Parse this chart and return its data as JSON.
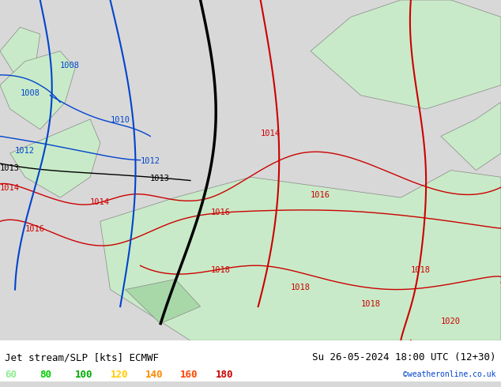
{
  "title_left": "Jet stream/SLP [kts] ECMWF",
  "title_right": "Su 26-05-2024 18:00 UTC (12+30)",
  "credit": "©weatheronline.co.uk",
  "legend_values": [
    "60",
    "80",
    "100",
    "120",
    "140",
    "160",
    "180"
  ],
  "legend_colors": [
    "#90ee90",
    "#00cc00",
    "#00aa00",
    "#ffcc00",
    "#ff8800",
    "#ff4400",
    "#cc0000"
  ],
  "bg_color": "#d8d8d8",
  "land_color_light": "#c8eac8",
  "land_color_dark": "#a8d8a8",
  "border_color": "#888888",
  "isobar_color": "#cc0000",
  "jet_black_color": "#000000",
  "jet_blue_color": "#0055cc",
  "jet_red_color": "#cc0000",
  "label_fontsize": 9,
  "title_fontsize": 9,
  "figsize": [
    6.34,
    4.9
  ],
  "dpi": 100
}
